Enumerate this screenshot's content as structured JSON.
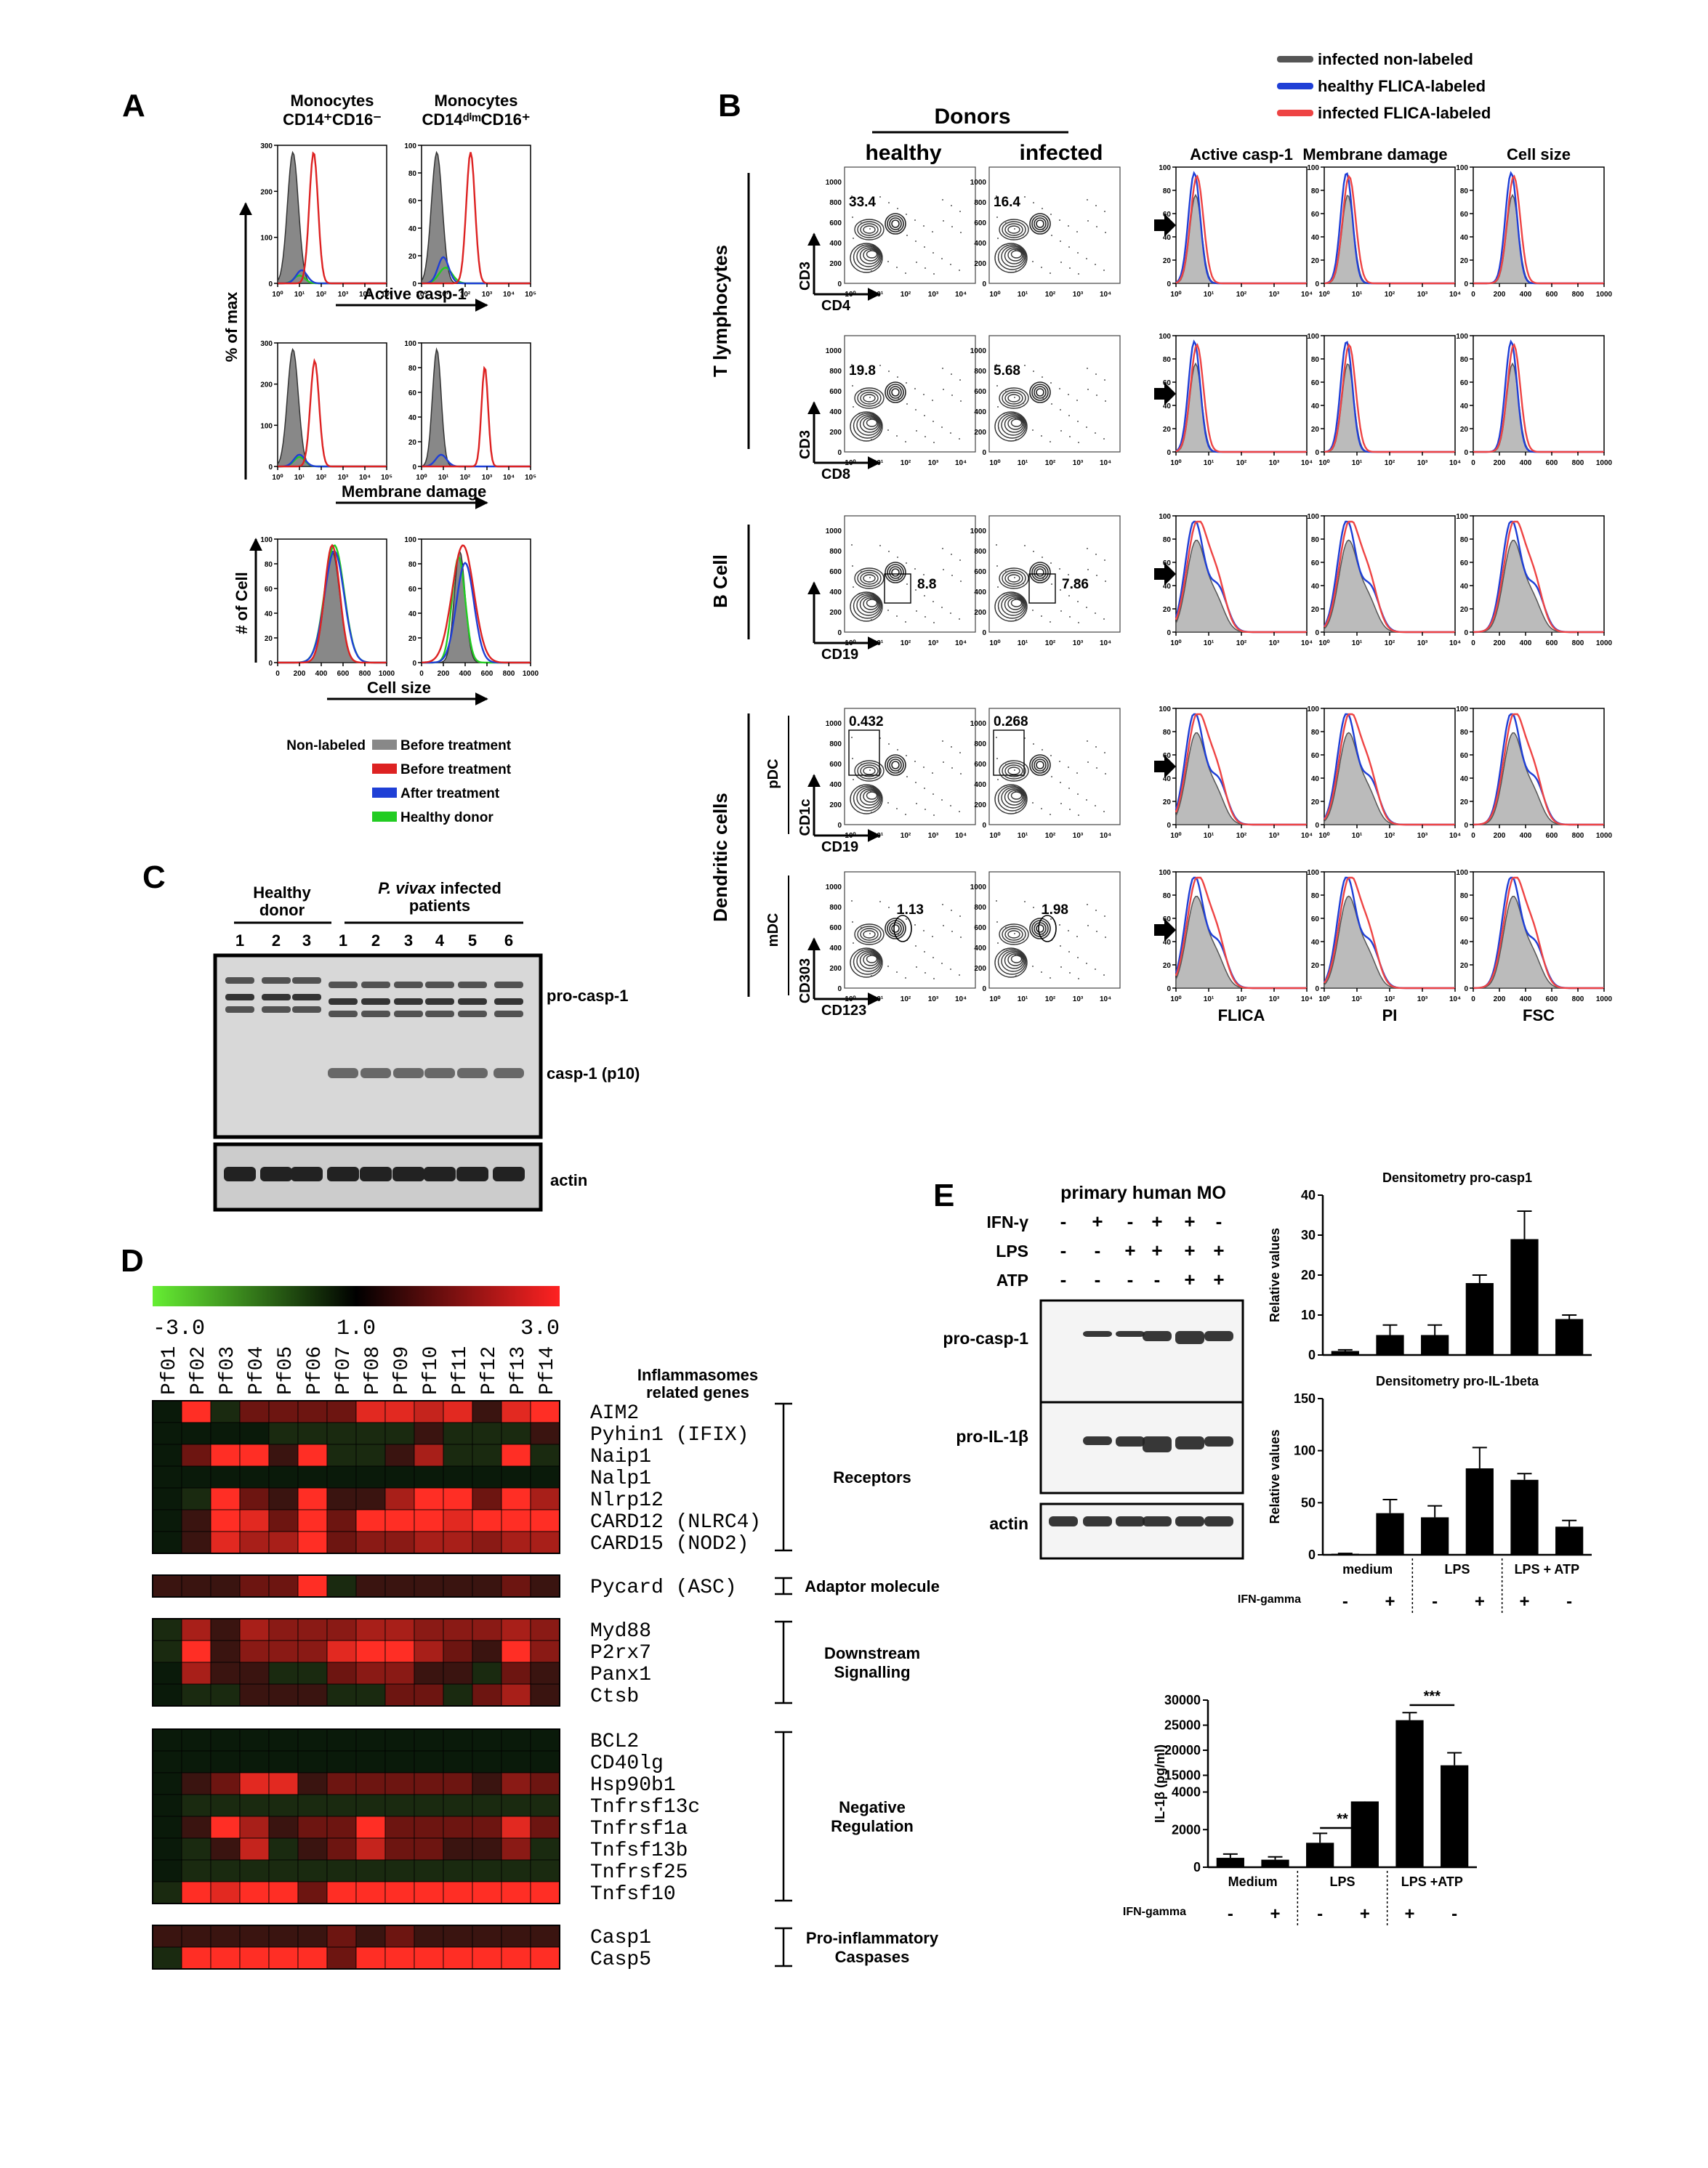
{
  "panels": {
    "A": "A",
    "B": "B",
    "C": "C",
    "D": "D",
    "E": "E"
  },
  "colors": {
    "gray": "#888888",
    "red": "#dd2222",
    "blue": "#1f3fd6",
    "green": "#22cc22",
    "black": "#000000"
  },
  "panelA": {
    "col1_title_top": "Monocytes",
    "col1_title_bottom": "CD14⁺CD16⁻",
    "col2_title_top": "Monocytes",
    "col2_title_bottom": "CD14ᵈⁱᵐCD16⁺",
    "ylabel_top": "% of max",
    "ylabel_bottom": "# of Cell",
    "xlabel1": "Active casp-1",
    "xlabel2": "Membrane damage",
    "xlabel3": "Cell size",
    "yticks_max": [
      "0",
      "100",
      "200",
      "300"
    ],
    "yticks_pct": [
      "0",
      "20",
      "40",
      "60",
      "80",
      "100"
    ],
    "log_ticks": [
      "10⁰",
      "10¹",
      "10²",
      "10³",
      "10⁴",
      "10⁵"
    ],
    "lin_ticks": [
      "0",
      "200",
      "400",
      "600",
      "800",
      "1000"
    ],
    "legend_label": "Non-labeled",
    "legend": [
      {
        "name": "Before treatment",
        "color": "#888888"
      },
      {
        "name": "Before treatment",
        "color": "#dd2222"
      },
      {
        "name": "After treatment",
        "color": "#1f3fd6"
      },
      {
        "name": "Healthy donor",
        "color": "#22cc22"
      }
    ]
  },
  "panelB": {
    "donors": "Donors",
    "healthy": "healthy",
    "infected": "infected",
    "legend": [
      {
        "name": "infected non-labeled",
        "color": "#555555"
      },
      {
        "name": "healthy FLICA-labeled",
        "color": "#1f3fd6"
      },
      {
        "name": "infected FLICA-labeled",
        "color": "#ee4444"
      }
    ],
    "col_titles": [
      "Active casp-1",
      "Membrane damage",
      "Cell size"
    ],
    "bottom_labels": [
      "FLICA",
      "PI",
      "FSC"
    ],
    "groups": [
      "T lymphocytes",
      "B Cell",
      "Dendritic cells"
    ],
    "subgroups": [
      "pDC",
      "mDC"
    ],
    "dot_ticks": [
      "0",
      "200",
      "400",
      "600",
      "800",
      "1000"
    ],
    "log_ticks": [
      "10⁰",
      "10¹",
      "10²",
      "10³",
      "10⁴"
    ],
    "pct_ticks": [
      "0",
      "20",
      "40",
      "60",
      "80",
      "100"
    ],
    "lin_ticks": [
      "0",
      "200",
      "400",
      "600",
      "800",
      "1000"
    ],
    "rows": [
      {
        "yl": "CD3",
        "xl": "CD4",
        "h": "33.4",
        "i": "16.4"
      },
      {
        "yl": "CD3",
        "xl": "CD8",
        "h": "19.8",
        "i": "5.68"
      },
      {
        "yl": "",
        "xl": "CD19",
        "h": "8.8",
        "i": "7.86"
      },
      {
        "yl": "CD1c",
        "xl": "CD19",
        "h": "0.432",
        "i": "0.268"
      },
      {
        "yl": "CD303",
        "xl": "CD123",
        "h": "1.13",
        "i": "1.98"
      }
    ]
  },
  "panelC": {
    "healthy": "Healthy",
    "donor": "donor",
    "infected_ital": "P. vivax",
    "infected_rest": " infected",
    "patients": "patients",
    "lanes": [
      "1",
      "2",
      "3",
      "1",
      "2",
      "3",
      "4",
      "5",
      "6"
    ],
    "bands": [
      "pro-casp-1",
      "casp-1 (p10)",
      "actin"
    ]
  },
  "panelD": {
    "scale": [
      "-3.0",
      "1.0",
      "3.0"
    ],
    "samples": [
      "Pf01",
      "Pf02",
      "Pf03",
      "Pf04",
      "Pf05",
      "Pf06",
      "Pf07",
      "Pf08",
      "Pf09",
      "Pf10",
      "Pf11",
      "Pf12",
      "Pf13",
      "Pf14"
    ],
    "header_top": "Inflammasomes",
    "header_bottom": "related genes",
    "blocks": [
      {
        "label": "Receptors",
        "genes": [
          "AIM2",
          "Pyhin1 (IFIX)",
          "Naip1",
          "Nalp1",
          "Nlrp12",
          "CARD12 (NLRC4)",
          "CARD15 (NOD2)"
        ]
      },
      {
        "label": "Adaptor molecule",
        "genes": [
          "Pycard (ASC)"
        ]
      },
      {
        "label": "Downstream|Signalling",
        "genes": [
          "Myd88",
          "P2rx7",
          "Panx1",
          "Ctsb"
        ]
      },
      {
        "label": "Negative|Regulation",
        "genes": [
          "BCL2",
          "CD40lg",
          "Hsp90b1",
          "Tnfrsf13c",
          "Tnfrsf1a",
          "Tnfsf13b",
          "Tnfrsf25",
          "Tnfsf10"
        ]
      },
      {
        "label": "Pro-inflammatory|Caspases",
        "genes": [
          "Casp1",
          "Casp5"
        ]
      }
    ],
    "values": [
      [
        1,
        9,
        2,
        4,
        4,
        4,
        4,
        8,
        8,
        7,
        8,
        3,
        8,
        9
      ],
      [
        0,
        1,
        1,
        1,
        2,
        2,
        2,
        2,
        2,
        3,
        2,
        2,
        2,
        3
      ],
      [
        0,
        4,
        9,
        9,
        3,
        9,
        2,
        2,
        3,
        6,
        2,
        2,
        9,
        2
      ],
      [
        0,
        1,
        1,
        1,
        1,
        1,
        1,
        1,
        1,
        1,
        1,
        1,
        1,
        1
      ],
      [
        1,
        2,
        9,
        4,
        3,
        9,
        3,
        3,
        6,
        9,
        9,
        4,
        9,
        6
      ],
      [
        1,
        3,
        9,
        8,
        4,
        9,
        4,
        9,
        9,
        9,
        8,
        9,
        9,
        9
      ],
      [
        0,
        3,
        8,
        6,
        6,
        9,
        4,
        5,
        5,
        6,
        6,
        5,
        6,
        6
      ],
      [
        3,
        3,
        3,
        4,
        4,
        9,
        2,
        3,
        3,
        3,
        3,
        3,
        4,
        3
      ],
      [
        2,
        6,
        3,
        6,
        5,
        5,
        5,
        6,
        6,
        5,
        5,
        5,
        6,
        5
      ],
      [
        2,
        9,
        3,
        5,
        5,
        5,
        8,
        9,
        9,
        6,
        4,
        3,
        9,
        5
      ],
      [
        1,
        6,
        3,
        3,
        2,
        2,
        4,
        5,
        5,
        3,
        3,
        2,
        4,
        3
      ],
      [
        1,
        2,
        2,
        3,
        3,
        3,
        2,
        2,
        4,
        4,
        2,
        4,
        6,
        3
      ],
      [
        1,
        1,
        1,
        1,
        1,
        1,
        1,
        1,
        1,
        1,
        1,
        1,
        1,
        1
      ],
      [
        1,
        1,
        1,
        1,
        1,
        1,
        1,
        1,
        1,
        1,
        1,
        1,
        1,
        1
      ],
      [
        0,
        3,
        4,
        8,
        8,
        3,
        4,
        4,
        4,
        4,
        4,
        3,
        5,
        4
      ],
      [
        1,
        2,
        2,
        2,
        2,
        2,
        2,
        2,
        2,
        2,
        2,
        2,
        2,
        2
      ],
      [
        1,
        3,
        9,
        6,
        3,
        4,
        4,
        9,
        4,
        4,
        4,
        4,
        8,
        4
      ],
      [
        1,
        2,
        3,
        7,
        2,
        3,
        4,
        7,
        4,
        4,
        3,
        3,
        5,
        2
      ],
      [
        1,
        2,
        2,
        2,
        2,
        2,
        2,
        2,
        2,
        2,
        2,
        2,
        2,
        2
      ],
      [
        2,
        9,
        8,
        9,
        9,
        4,
        9,
        9,
        9,
        9,
        9,
        9,
        9,
        9
      ],
      [
        3,
        3,
        3,
        3,
        3,
        3,
        4,
        3,
        4,
        3,
        3,
        3,
        3,
        3
      ],
      [
        2,
        9,
        9,
        9,
        9,
        9,
        4,
        9,
        9,
        9,
        9,
        9,
        9,
        9
      ]
    ]
  },
  "panelE": {
    "title": "primary human MO",
    "treat_rows": [
      {
        "name": "IFN-γ",
        "signs": [
          "-",
          "+",
          "-",
          "+",
          "+",
          "-"
        ]
      },
      {
        "name": "LPS",
        "signs": [
          "-",
          "-",
          "+",
          "+",
          "+",
          "+"
        ]
      },
      {
        "name": "ATP",
        "signs": [
          "-",
          "-",
          "-",
          "-",
          "+",
          "+"
        ]
      }
    ],
    "blots": [
      "pro-casp-1",
      "pro-IL-1β",
      "actin"
    ]
  },
  "chart_data": [
    {
      "type": "bar",
      "title": "Densitometry pro-casp1",
      "ylabel": "Relative values",
      "ylim": [
        0,
        40
      ],
      "yticks": [
        0,
        10,
        20,
        30,
        40
      ],
      "values": [
        1,
        5,
        5,
        18,
        29,
        9
      ],
      "errors": [
        0.3,
        2.5,
        2.5,
        2,
        7,
        1
      ]
    },
    {
      "type": "bar",
      "title": "Densitometry pro-IL-1beta",
      "ylabel": "Relative values",
      "ylim": [
        0,
        150
      ],
      "yticks": [
        0,
        50,
        100,
        150
      ],
      "values": [
        1,
        40,
        36,
        83,
        72,
        27
      ],
      "errors": [
        0.3,
        13,
        11,
        20,
        6,
        6
      ],
      "groups": [
        "medium",
        "LPS",
        "LPS + ATP"
      ],
      "factor_label": "IFN-gamma",
      "factor": [
        "-",
        "+",
        "-",
        "+",
        "+",
        "-"
      ]
    },
    {
      "type": "bar",
      "ylabel": "IL-1β (pg/ml)",
      "ylim": [
        0,
        30000
      ],
      "yticks": [
        0,
        2000,
        4000,
        15000,
        20000,
        25000,
        30000
      ],
      "values": [
        500,
        400,
        1300,
        3500,
        26000,
        17000
      ],
      "errors": [
        200,
        150,
        500,
        800,
        1500,
        2500
      ],
      "groups": [
        "Medium",
        "LPS",
        "LPS +ATP"
      ],
      "factor_label": "IFN-gamma",
      "factor": [
        "-",
        "+",
        "-",
        "+",
        "+",
        "-"
      ],
      "significance": [
        "**",
        "***"
      ]
    }
  ]
}
